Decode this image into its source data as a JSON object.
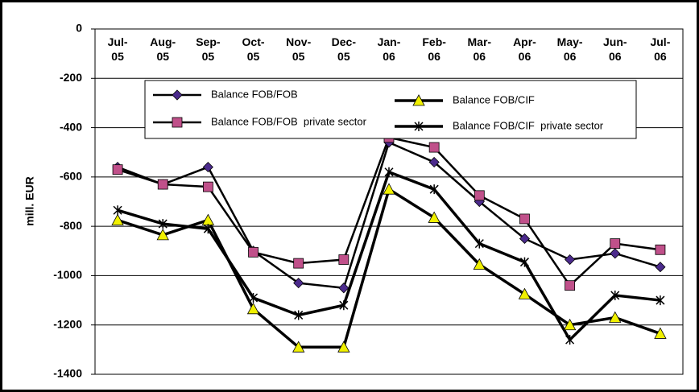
{
  "chart_data": {
    "type": "line",
    "y_label": "mill. EUR",
    "categories": [
      "Jul-05",
      "Aug-05",
      "Sep-05",
      "Oct-05",
      "Nov-05",
      "Dec-05",
      "Jan-06",
      "Feb-06",
      "Mar-06",
      "Apr-06",
      "May-06",
      "Jun-06",
      "Jul-06"
    ],
    "series": [
      {
        "name": "Balance FOB/FOB",
        "color": "#4b2a8c",
        "marker": "diamond",
        "values": [
          -560,
          -630,
          -560,
          -900,
          -1030,
          -1050,
          -460,
          -540,
          -700,
          -850,
          -935,
          -910,
          -965
        ]
      },
      {
        "name": "Balance FOB/FOB  private sector",
        "color": "#c0508a",
        "marker": "square",
        "values": [
          -570,
          -630,
          -640,
          -905,
          -950,
          -935,
          -440,
          -480,
          -675,
          -770,
          -1040,
          -870,
          -895
        ]
      },
      {
        "name": "Balance FOB/CIF",
        "color": "#f0f000",
        "marker": "triangle",
        "values": [
          -775,
          -835,
          -775,
          -1135,
          -1290,
          -1290,
          -650,
          -765,
          -955,
          -1075,
          -1200,
          -1170,
          -1235
        ]
      },
      {
        "name": "Balance FOB/CIF  private sector",
        "color": "#000000",
        "marker": "x",
        "values": [
          -735,
          -790,
          -810,
          -1090,
          -1160,
          -1120,
          -580,
          -650,
          -870,
          -945,
          -1260,
          -1080,
          -1100
        ]
      }
    ],
    "ylim": [
      -1400,
      0
    ],
    "yticks": [
      0,
      -200,
      -400,
      -600,
      -800,
      -1000,
      -1200,
      -1400
    ],
    "grid": true
  }
}
